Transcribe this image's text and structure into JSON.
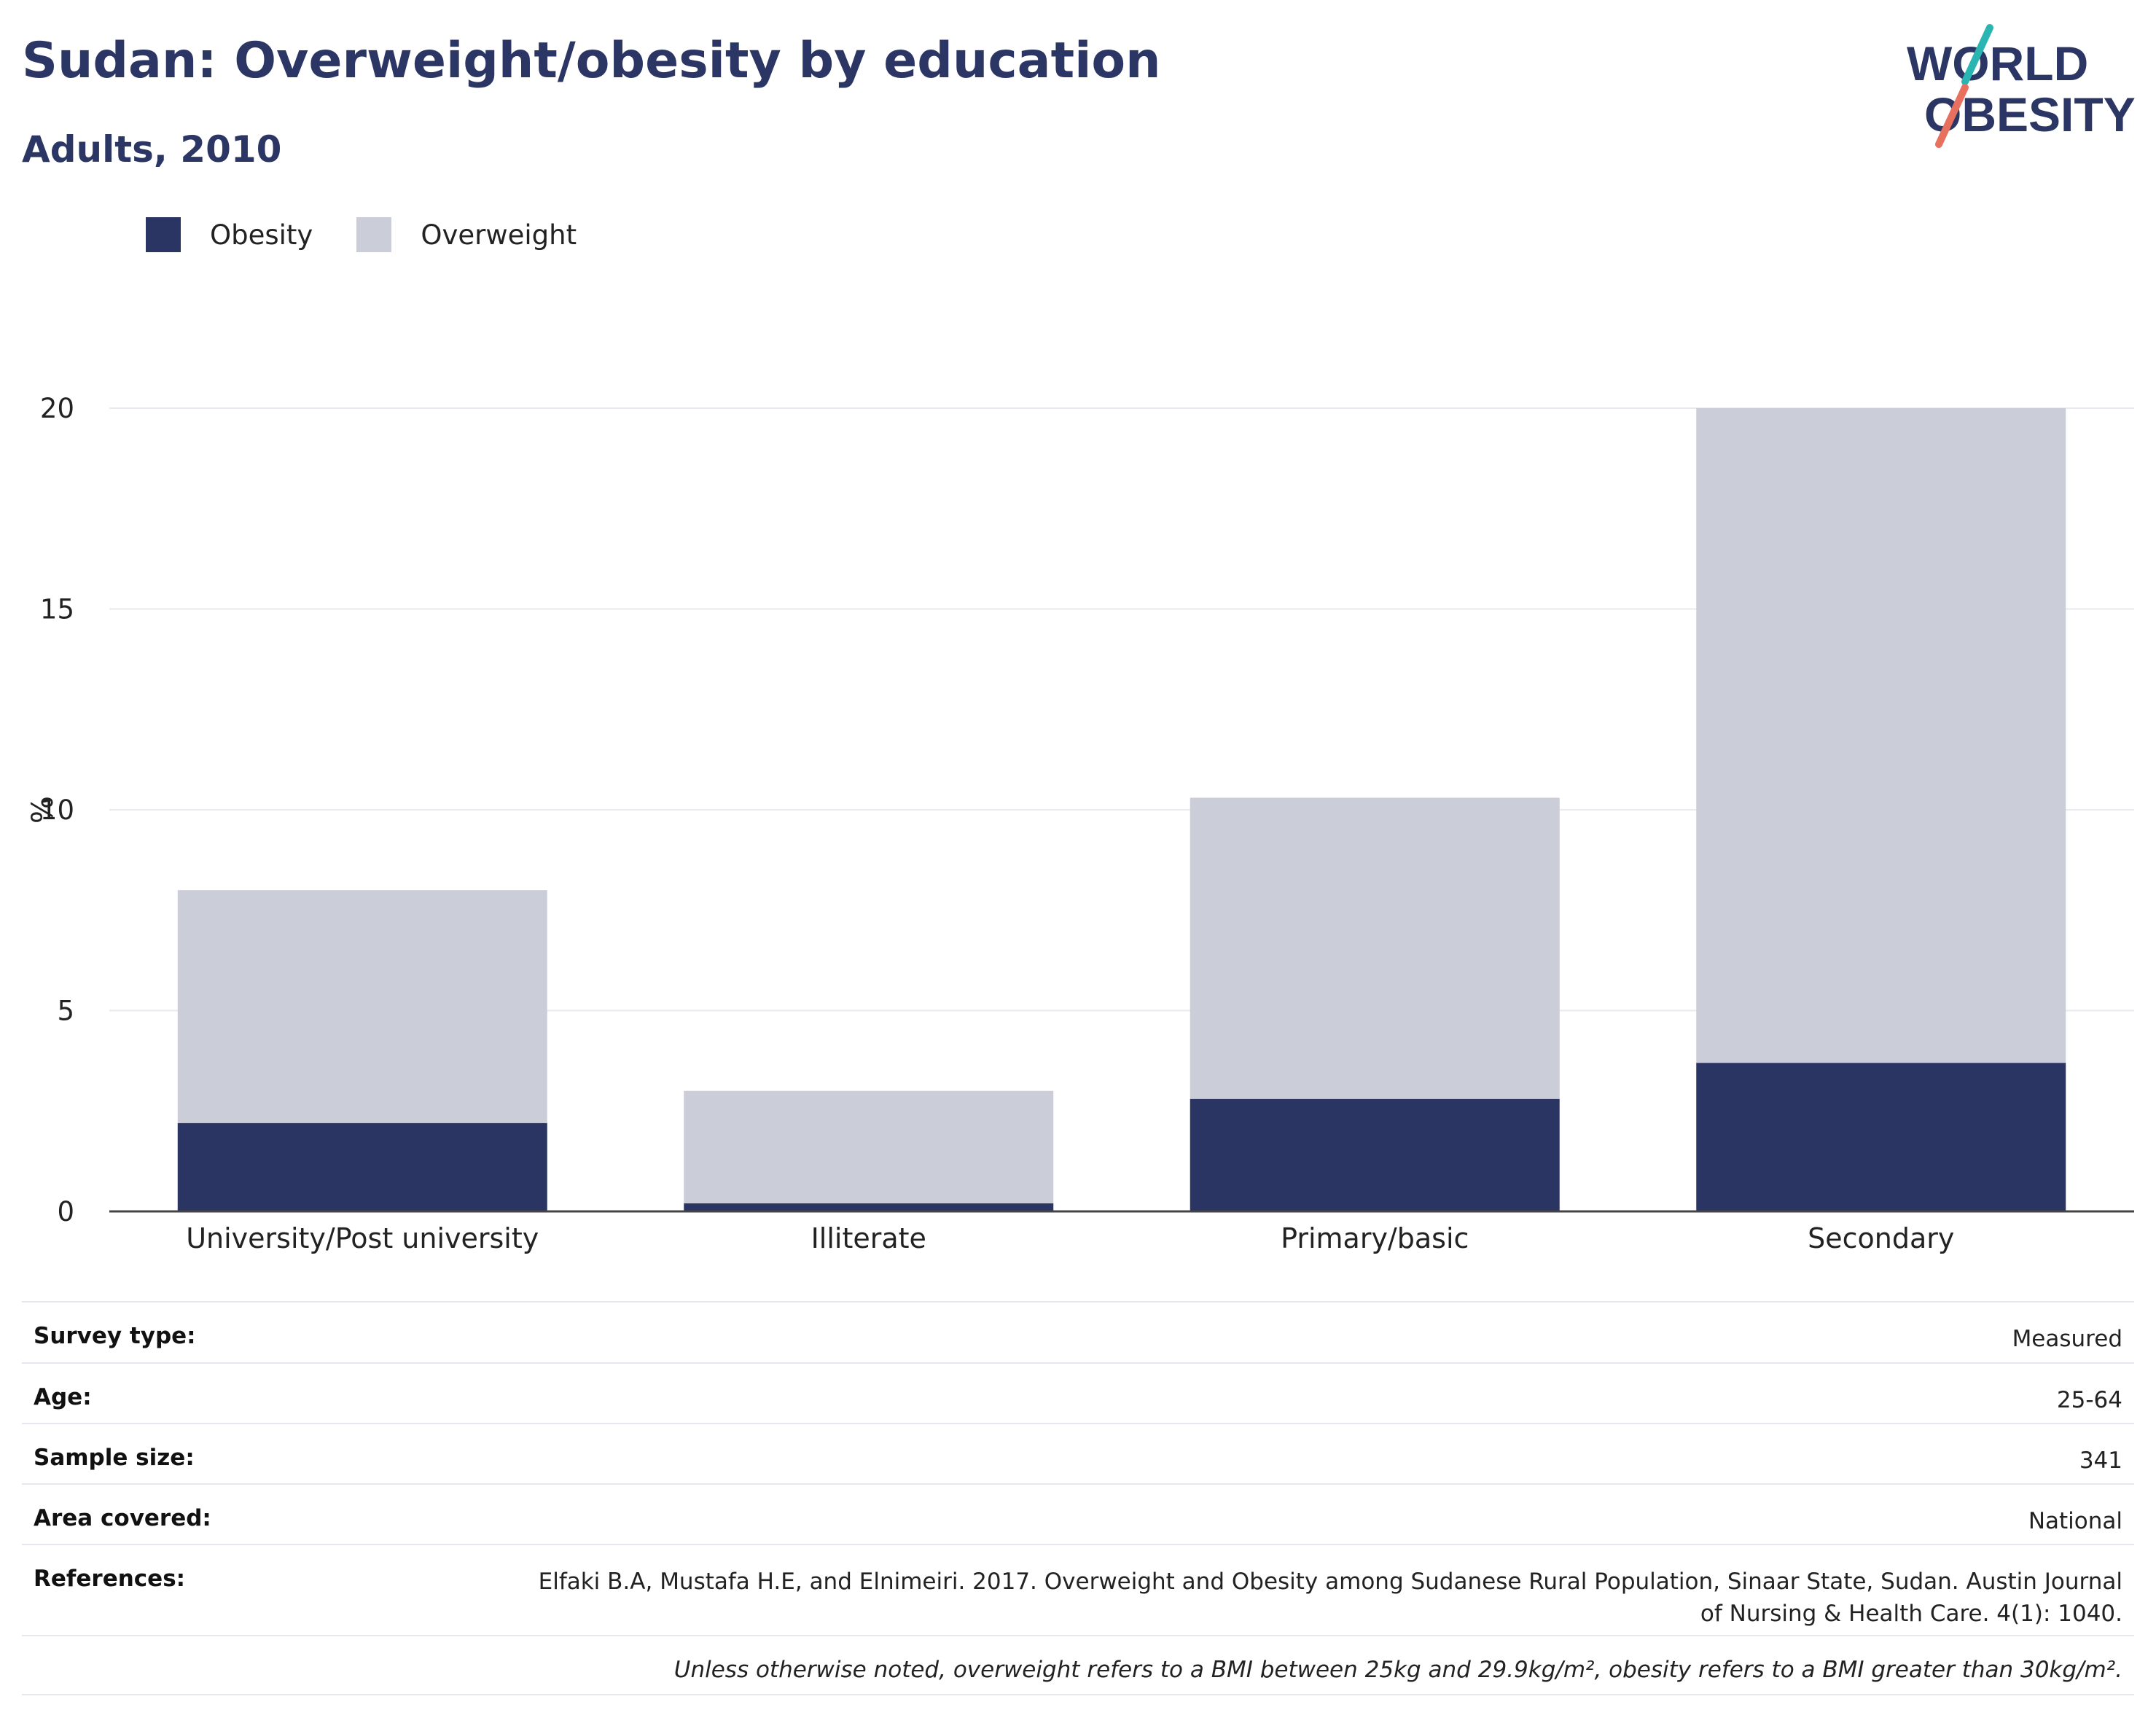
{
  "header": {
    "title": "Sudan: Overweight/obesity by education",
    "subtitle": "Adults, 2010"
  },
  "logo": {
    "line1": "WORLD",
    "line2": "OBESITY",
    "accent_teal": "#2bb5b2",
    "accent_coral": "#e8705f",
    "text_color": "#2b3664"
  },
  "colors": {
    "obesity": "#2a3564",
    "overweight": "#cbcdd9",
    "grid": "#e8e9ef",
    "axis": "#444444"
  },
  "legend": {
    "items": [
      {
        "label": "Obesity",
        "color": "#2a3564"
      },
      {
        "label": "Overweight",
        "color": "#cbcdd9"
      }
    ]
  },
  "chart_data": {
    "type": "bar",
    "stacked": true,
    "categories": [
      "University/Post university",
      "Illiterate",
      "Primary/basic",
      "Secondary"
    ],
    "series": [
      {
        "name": "Obesity",
        "values": [
          2.2,
          0.2,
          2.8,
          3.7
        ]
      },
      {
        "name": "Overweight",
        "values": [
          5.8,
          2.8,
          7.5,
          16.3
        ]
      }
    ],
    "ylabel": "%",
    "ylim": [
      0,
      20
    ],
    "yticks": [
      0,
      5,
      10,
      15,
      20
    ],
    "grid": true,
    "legend_position": "top-left"
  },
  "info": {
    "rows": [
      {
        "key": "Survey type:",
        "value": "Measured"
      },
      {
        "key": "Age:",
        "value": "25-64"
      },
      {
        "key": "Sample size:",
        "value": "341"
      },
      {
        "key": "Area covered:",
        "value": "National"
      },
      {
        "key": "References:",
        "value": "Elfaki B.A, Mustafa H.E, and Elnimeiri. 2017. Overweight and Obesity among Sudanese Rural Population, Sinaar State, Sudan. Austin Journal of Nursing & Health Care. 4(1): 1040."
      }
    ],
    "footnote": "Unless otherwise noted, overweight refers to a BMI between 25kg and 29.9kg/m², obesity refers to a BMI greater than 30kg/m²."
  }
}
